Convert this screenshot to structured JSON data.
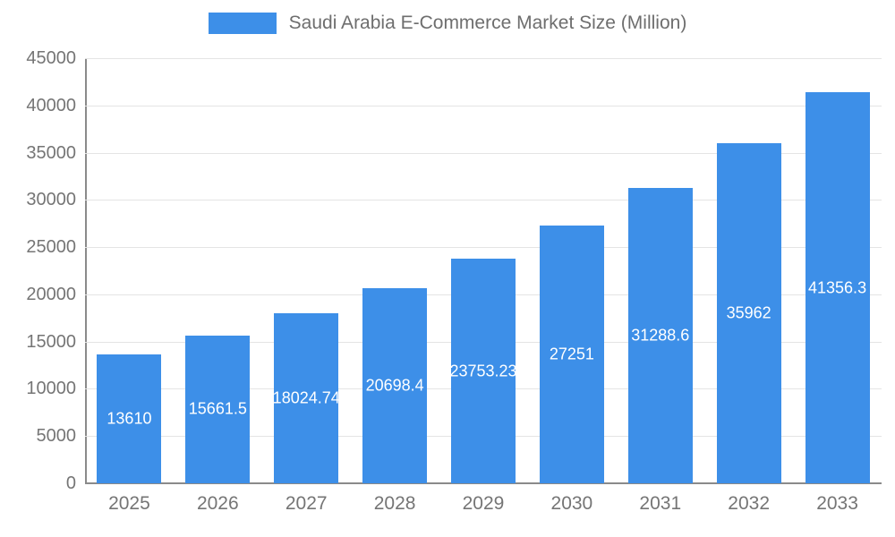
{
  "colors": {
    "bar": "#3d8fe8",
    "axis_text": "#757575",
    "title_text": "#6e6e6e",
    "gridline": "#e4e4e4",
    "axis_line": "#8a8a8a",
    "bar_label": "#ffffff"
  },
  "legend": {
    "title": "Saudi Arabia E-Commerce Market Size (Million)"
  },
  "chart_data": {
    "type": "bar",
    "title": "Saudi Arabia E-Commerce Market Size (Million)",
    "categories": [
      "2025",
      "2026",
      "2027",
      "2028",
      "2029",
      "2030",
      "2031",
      "2032",
      "2033"
    ],
    "values": [
      13610,
      15661.5,
      18024.74,
      20698.4,
      23753.23,
      27251,
      31288.6,
      35962,
      41356.3
    ],
    "value_labels": [
      "13610",
      "15661.5",
      "18024.74",
      "20698.4",
      "23753.23",
      "27251",
      "31288.6",
      "35962",
      "41356.3"
    ],
    "xlabel": "",
    "ylabel": "",
    "ylim": [
      0,
      45000
    ],
    "yticks": [
      0,
      5000,
      10000,
      15000,
      20000,
      25000,
      30000,
      35000,
      40000,
      45000
    ],
    "grid": true,
    "legend_position": "top-center",
    "bar_label_position": "center",
    "bar_label_color": "#ffffff"
  }
}
